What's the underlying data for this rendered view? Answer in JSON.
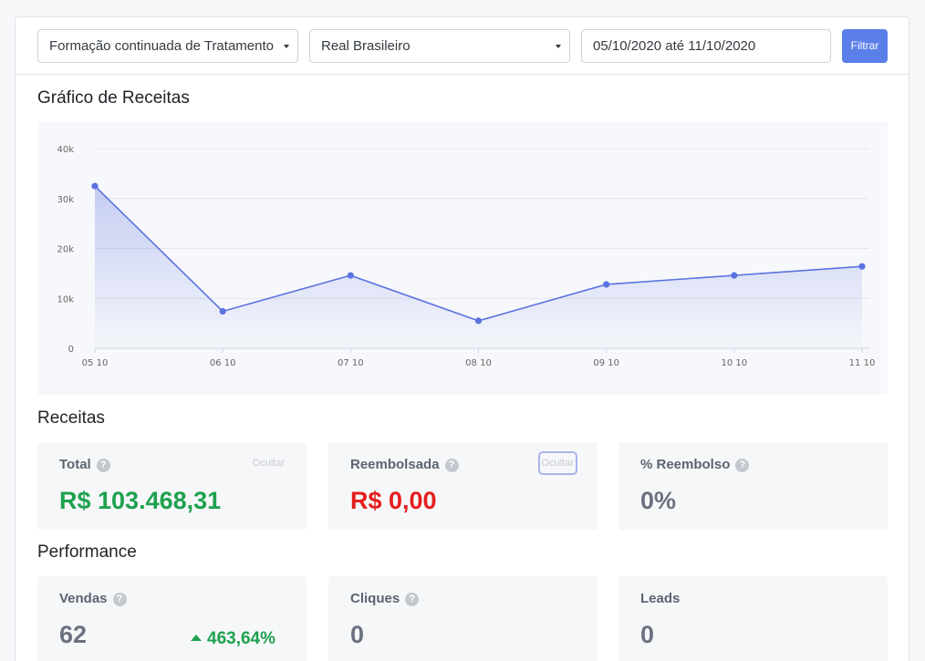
{
  "filters": {
    "product": "Formação continuada de Tratamento",
    "currency": "Real Brasileiro",
    "date_range": "05/10/2020 até 11/10/2020",
    "filter_button": "Filtrar"
  },
  "chart_section_title": "Gráfico de Receitas",
  "chart_data": {
    "type": "area",
    "title": "",
    "xlabel": "",
    "ylabel": "",
    "categories": [
      "05 10",
      "06 10",
      "07 10",
      "08 10",
      "09 10",
      "10 10",
      "11 10"
    ],
    "series": [
      {
        "values": [
          32500,
          7400,
          14600,
          5500,
          12800,
          14600,
          16400
        ]
      }
    ],
    "ylim": [
      0,
      40000
    ],
    "yticks": [
      0,
      10000,
      20000,
      30000,
      40000
    ],
    "ytick_labels": [
      "0",
      "10k",
      "20k",
      "30k",
      "40k"
    ],
    "grid": true,
    "legend": "none",
    "line_color": "#5b73e0"
  },
  "receitas_title": "Receitas",
  "receitas": {
    "total": {
      "label": "Total",
      "value": "R$ 103.468,31",
      "hide": "Ocultar"
    },
    "refunded": {
      "label": "Reembolsada",
      "value": "R$ 0,00",
      "hide": "Ocultar"
    },
    "refund_pct": {
      "label": "% Reembolso",
      "value": "0%"
    }
  },
  "performance_title": "Performance",
  "performance": {
    "sales": {
      "label": "Vendas",
      "value": "62",
      "trend": "463,64%"
    },
    "clicks": {
      "label": "Cliques",
      "value": "0"
    },
    "leads": {
      "label": "Leads",
      "value": "0"
    }
  },
  "help_glyph": "?",
  "colors": {
    "accent": "#5b7fe8",
    "positive": "#1ea14e",
    "negative": "#e51e1e"
  }
}
